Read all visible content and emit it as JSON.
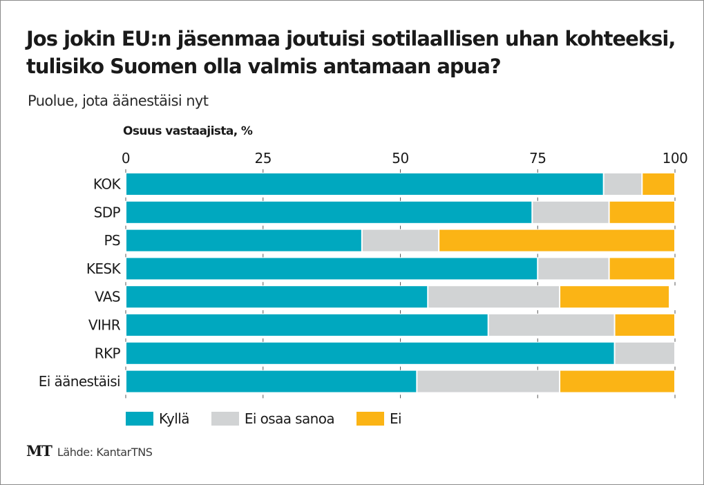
{
  "chart_data": {
    "type": "bar",
    "orientation": "horizontal",
    "stacked": true,
    "title": "Jos jokin EU:n jäsenmaa joutuisi sotilaallisen uhan kohteeksi, tulisiko Suomen olla valmis antamaan apua?",
    "subtitle": "Puolue, jota äänestäisi nyt",
    "xlabel": "Osuus vastaajista, %",
    "ylabel": "",
    "xlim": [
      0,
      100
    ],
    "xticks": [
      0,
      25,
      50,
      75,
      100
    ],
    "grid": false,
    "legend_position": "bottom",
    "categories": [
      "KOK",
      "SDP",
      "PS",
      "KESK",
      "VAS",
      "VIHR",
      "RKP",
      "Ei äänestäisi"
    ],
    "series": [
      {
        "name": "Kyllä",
        "color": "#00a8bf",
        "values": [
          87,
          74,
          43,
          75,
          55,
          66,
          89,
          53
        ]
      },
      {
        "name": "Ei osaa sanoa",
        "color": "#d1d3d4",
        "values": [
          7,
          14,
          14,
          13,
          24,
          23,
          11,
          26
        ]
      },
      {
        "name": "Ei",
        "color": "#fbb415",
        "values": [
          6,
          12,
          43,
          12,
          20,
          11,
          0,
          21
        ]
      }
    ]
  },
  "footer": {
    "logo": "MT",
    "source": "Lähde: KantarTNS"
  }
}
